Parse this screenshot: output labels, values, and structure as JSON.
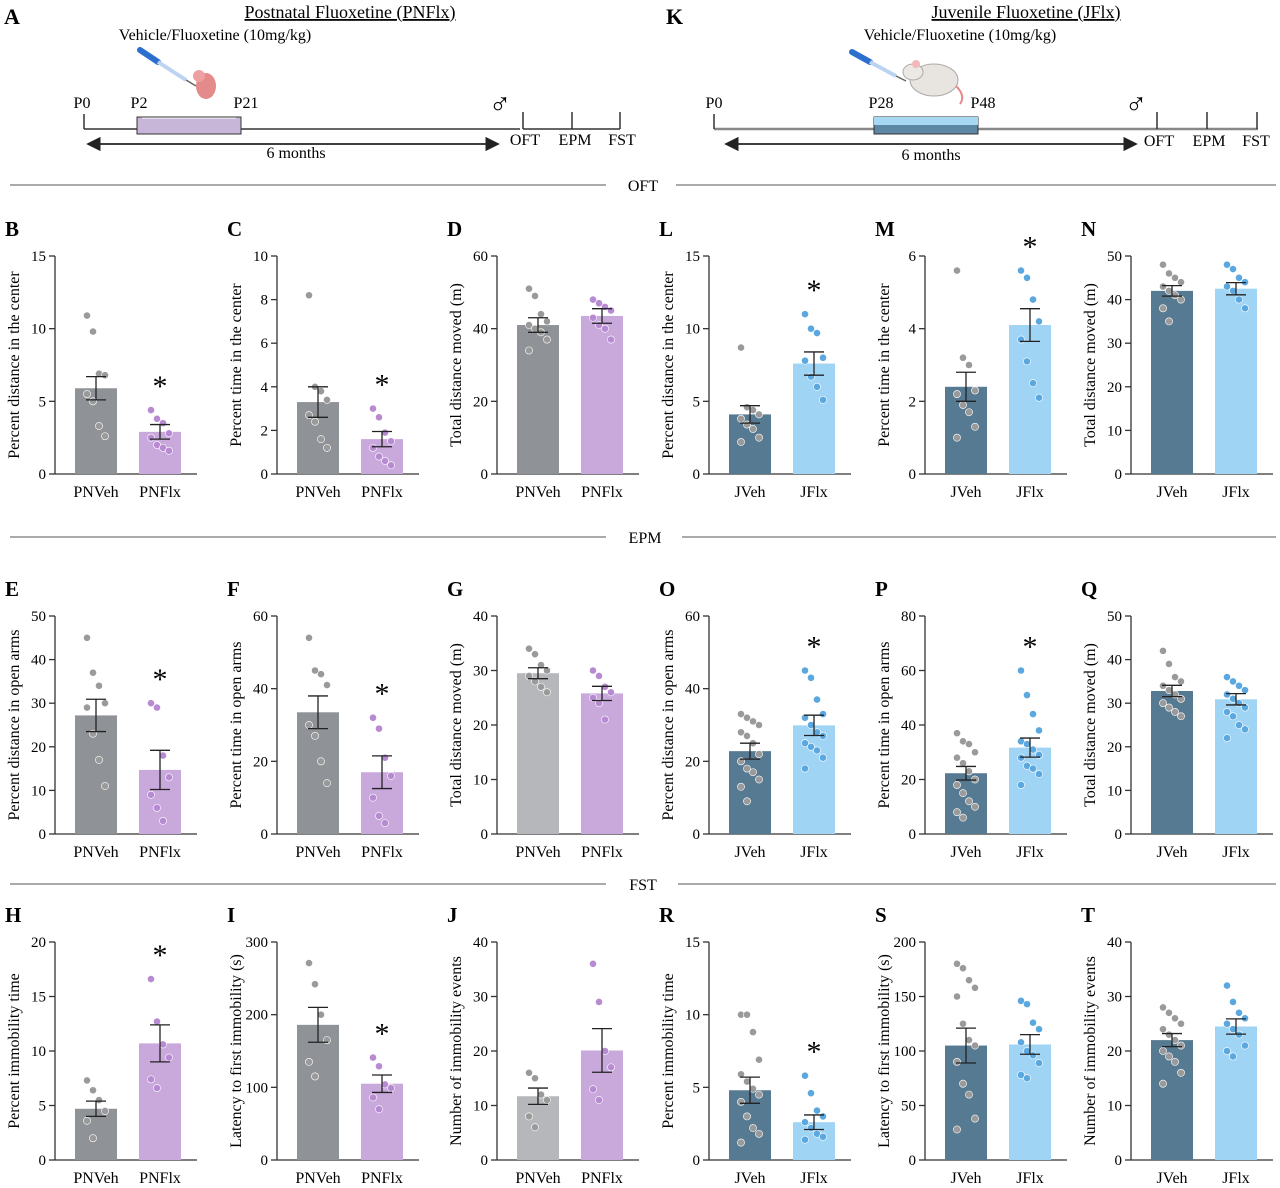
{
  "colors": {
    "pn_veh": "#8f9398",
    "pn_flx": "#c9a8dc",
    "pn_veh_light": "#b5b7ba",
    "j_veh": "#557a92",
    "j_flx": "#9fd4f5",
    "pn_veh_dot": "#9a9a9a",
    "pn_flx_dot": "#b78ad2",
    "j_flx_dot": "#5aa8df",
    "axis": "#333333",
    "syringe": "#2c6fcf",
    "pup": "#e58a8a"
  },
  "protocols": {
    "left": {
      "panel": "A",
      "title": "Postnatal Fluoxetine (PNFlx)",
      "dose": "Vehicle/Fluoxetine (10mg/kg)",
      "markers": [
        "P0",
        "P2",
        "P21"
      ],
      "duration": "6 months",
      "sex": "♂",
      "tests": [
        "OFT",
        "EPM",
        "FST"
      ],
      "treatment_box_color": "#c7b6d8"
    },
    "right": {
      "panel": "K",
      "title": "Juvenile Fluoxetine (JFlx)",
      "dose": "Vehicle/Fluoxetine (10mg/kg)",
      "markers": [
        "P0",
        "P28",
        "P48"
      ],
      "duration": "6 months",
      "sex": "♂",
      "tests": [
        "OFT",
        "EPM",
        "FST"
      ],
      "treatment_box_color": "#5e87a6"
    }
  },
  "section_labels": [
    "OFT",
    "EPM",
    "FST"
  ],
  "chart_data": [
    {
      "id": "B",
      "type": "bar",
      "group": "pn",
      "ylabel": "Percent distance in the center",
      "ylim": [
        0,
        15
      ],
      "ticks": [
        0,
        5,
        10,
        15
      ],
      "categories": [
        "PNVeh",
        "PNFlx"
      ],
      "values": [
        5.9,
        2.9
      ],
      "sem": [
        0.8,
        0.5
      ],
      "points": [
        [
          10.9,
          9.8,
          6.9,
          6.8,
          5.5,
          5.0,
          3.3,
          2.6
        ],
        [
          4.4,
          3.8,
          3.5,
          2.8,
          2.5,
          2.0,
          1.8,
          1.6
        ]
      ],
      "significant": [
        false,
        true
      ]
    },
    {
      "id": "C",
      "type": "bar",
      "group": "pn",
      "ylabel": "Percent time in the center",
      "ylim": [
        0,
        10
      ],
      "ticks": [
        0,
        2,
        4,
        6,
        8,
        10
      ],
      "categories": [
        "PNVeh",
        "PNFlx"
      ],
      "values": [
        3.3,
        1.6
      ],
      "sem": [
        0.7,
        0.35
      ],
      "points": [
        [
          8.2,
          4.0,
          3.8,
          3.4,
          2.7,
          2.4,
          1.6,
          1.2
        ],
        [
          3.0,
          2.6,
          1.9,
          1.5,
          1.2,
          0.8,
          0.6,
          0.4
        ]
      ],
      "significant": [
        false,
        true
      ]
    },
    {
      "id": "D",
      "type": "bar",
      "group": "pn",
      "ylabel": "Total distance moved (m)",
      "ylim": [
        0,
        60
      ],
      "ticks": [
        0,
        20,
        40,
        60
      ],
      "categories": [
        "PNVeh",
        "PNFlx"
      ],
      "values": [
        41,
        43.5
      ],
      "sem": [
        2.0,
        2.0
      ],
      "points": [
        [
          51,
          49,
          44,
          42,
          41,
          40,
          39,
          37,
          34
        ],
        [
          48,
          47,
          46,
          45,
          43,
          41,
          40,
          37
        ]
      ],
      "significant": [
        false,
        false
      ]
    },
    {
      "id": "L",
      "type": "bar",
      "group": "j",
      "ylabel": "Percent distance in the center",
      "ylim": [
        0,
        15
      ],
      "ticks": [
        0,
        5,
        10,
        15
      ],
      "categories": [
        "JVeh",
        "JFlx"
      ],
      "values": [
        4.1,
        7.6
      ],
      "sem": [
        0.6,
        0.8
      ],
      "points": [
        [
          8.7,
          4.6,
          4.4,
          4.1,
          3.8,
          3.4,
          3.1,
          2.5,
          2.2
        ],
        [
          11.0,
          10.0,
          9.7,
          8.0,
          7.8,
          6.7,
          6.0,
          5.1
        ]
      ],
      "significant": [
        false,
        true
      ]
    },
    {
      "id": "M",
      "type": "bar",
      "group": "j",
      "ylabel": "Percent time in the center",
      "ylim": [
        0,
        6
      ],
      "ticks": [
        0,
        2,
        4,
        6
      ],
      "categories": [
        "JVeh",
        "JFlx"
      ],
      "values": [
        2.4,
        4.1
      ],
      "sem": [
        0.4,
        0.45
      ],
      "points": [
        [
          5.6,
          3.2,
          3.0,
          2.3,
          2.2,
          1.9,
          1.7,
          1.3,
          1.0
        ],
        [
          5.6,
          5.4,
          4.8,
          4.2,
          3.7,
          3.1,
          2.5,
          2.1
        ]
      ],
      "significant": [
        false,
        true
      ]
    },
    {
      "id": "N",
      "type": "bar",
      "group": "j",
      "ylabel": "Total distance moved (m)",
      "ylim": [
        0,
        50
      ],
      "ticks": [
        0,
        10,
        20,
        30,
        40,
        50
      ],
      "categories": [
        "JVeh",
        "JFlx"
      ],
      "values": [
        42,
        42.5
      ],
      "sem": [
        1.2,
        1.4
      ],
      "points": [
        [
          48,
          46,
          45,
          44,
          43,
          42,
          41,
          40,
          38,
          35
        ],
        [
          48,
          47,
          45,
          44,
          43,
          42,
          40,
          38
        ]
      ],
      "significant": [
        false,
        false
      ]
    },
    {
      "id": "E",
      "type": "bar",
      "group": "pn",
      "ylabel": "Percent distance in open arms",
      "ylim": [
        0,
        50
      ],
      "ticks": [
        0,
        10,
        20,
        30,
        40,
        50
      ],
      "categories": [
        "PNVeh",
        "PNFlx"
      ],
      "values": [
        27.2,
        14.7
      ],
      "sem": [
        3.7,
        4.5
      ],
      "points": [
        [
          45,
          37,
          34,
          30,
          29,
          23,
          17,
          11
        ],
        [
          30,
          29,
          18,
          13,
          9,
          6,
          3
        ]
      ],
      "significant": [
        false,
        true
      ]
    },
    {
      "id": "F",
      "type": "bar",
      "group": "pn",
      "ylabel": "Percent time in open arms",
      "ylim": [
        0,
        60
      ],
      "ticks": [
        0,
        20,
        40,
        60
      ],
      "categories": [
        "PNVeh",
        "PNFlx"
      ],
      "values": [
        33.5,
        17
      ],
      "sem": [
        4.5,
        4.5
      ],
      "points": [
        [
          54,
          45,
          44,
          41,
          30,
          27,
          20,
          14
        ],
        [
          32,
          29,
          21,
          16,
          10,
          5,
          3
        ]
      ],
      "significant": [
        false,
        true
      ]
    },
    {
      "id": "G",
      "type": "bar",
      "group": "pn_light",
      "ylabel": "Total distance moved (m)",
      "ylim": [
        0,
        40
      ],
      "ticks": [
        0,
        10,
        20,
        30,
        40
      ],
      "categories": [
        "PNVeh",
        "PNFlx"
      ],
      "values": [
        29.5,
        25.8
      ],
      "sem": [
        1.0,
        1.3
      ],
      "points": [
        [
          34,
          33,
          31,
          30,
          29,
          28,
          27,
          26
        ],
        [
          30,
          29,
          27,
          26,
          25,
          24,
          21
        ]
      ],
      "significant": [
        false,
        false
      ]
    },
    {
      "id": "O",
      "type": "bar",
      "group": "j",
      "ylabel": "Percent distance in open arms",
      "ylim": [
        0,
        60
      ],
      "ticks": [
        0,
        20,
        40,
        60
      ],
      "categories": [
        "JVeh",
        "JFlx"
      ],
      "values": [
        22.8,
        29.9
      ],
      "sem": [
        2.2,
        2.8
      ],
      "points": [
        [
          33,
          32,
          31,
          30,
          28,
          27,
          25,
          22,
          20,
          18,
          17,
          15,
          13,
          9
        ],
        [
          45,
          43,
          37,
          33,
          32,
          30,
          28,
          27,
          25,
          24,
          23,
          21,
          18
        ]
      ],
      "significant": [
        false,
        true
      ]
    },
    {
      "id": "P",
      "type": "bar",
      "group": "j",
      "ylabel": "Percent time in open arms",
      "ylim": [
        0,
        80
      ],
      "ticks": [
        0,
        20,
        40,
        60,
        80
      ],
      "categories": [
        "JVeh",
        "JFlx"
      ],
      "values": [
        22.3,
        31.7
      ],
      "sem": [
        2.5,
        3.5
      ],
      "points": [
        [
          37,
          34,
          33,
          30,
          28,
          26,
          23,
          20,
          18,
          15,
          12,
          10,
          8,
          6
        ],
        [
          60,
          51,
          44,
          38,
          34,
          33,
          31,
          29,
          28,
          25,
          24,
          22,
          18
        ]
      ],
      "significant": [
        false,
        true
      ]
    },
    {
      "id": "Q",
      "type": "bar",
      "group": "j",
      "ylabel": "Total distance moved (m)",
      "ylim": [
        0,
        50
      ],
      "ticks": [
        0,
        10,
        20,
        30,
        40,
        50
      ],
      "categories": [
        "JVeh",
        "JFlx"
      ],
      "values": [
        32.8,
        30.9
      ],
      "sem": [
        1.3,
        1.3
      ],
      "points": [
        [
          42,
          39,
          36,
          35,
          34,
          33,
          32,
          31,
          30,
          29,
          28,
          27
        ],
        [
          36,
          35,
          34,
          33,
          32,
          31,
          30,
          29,
          28,
          27,
          25,
          24,
          22
        ]
      ],
      "significant": [
        false,
        false
      ]
    },
    {
      "id": "H",
      "type": "bar",
      "group": "pn",
      "ylabel": "Percent immobility time",
      "ylim": [
        0,
        20
      ],
      "ticks": [
        0,
        5,
        10,
        15,
        20
      ],
      "categories": [
        "PNVeh",
        "PNFlx"
      ],
      "values": [
        4.7,
        10.7
      ],
      "sem": [
        0.7,
        1.7
      ],
      "points": [
        [
          7.3,
          6.4,
          5.5,
          4.5,
          3.6,
          2.0
        ],
        [
          16.6,
          12.7,
          10.6,
          9.4,
          7.4,
          6.6
        ]
      ],
      "significant": [
        false,
        true
      ]
    },
    {
      "id": "I",
      "type": "bar",
      "group": "pn",
      "ylabel": "Latency to first immobility (s)",
      "ylim": [
        0,
        300
      ],
      "ticks": [
        0,
        100,
        200,
        300
      ],
      "categories": [
        "PNVeh",
        "PNFlx"
      ],
      "values": [
        186,
        105
      ],
      "sem": [
        24,
        12
      ],
      "points": [
        [
          271,
          242,
          200,
          165,
          135,
          115
        ],
        [
          141,
          129,
          104,
          99,
          86,
          70
        ]
      ],
      "significant": [
        false,
        true
      ]
    },
    {
      "id": "J",
      "type": "bar",
      "group": "pn_light",
      "ylabel": "Number of immobility events",
      "ylim": [
        0,
        40
      ],
      "ticks": [
        0,
        10,
        20,
        30,
        40
      ],
      "categories": [
        "PNVeh",
        "PNFlx"
      ],
      "values": [
        11.7,
        20.1
      ],
      "sem": [
        1.5,
        4.0
      ],
      "points": [
        [
          16,
          15,
          12,
          11,
          8,
          6
        ],
        [
          36,
          29,
          20,
          17,
          13,
          11
        ]
      ],
      "significant": [
        false,
        false
      ]
    },
    {
      "id": "R",
      "type": "bar",
      "group": "j",
      "ylabel": "Percent immobility time",
      "ylim": [
        0,
        15
      ],
      "ticks": [
        0,
        5,
        10,
        15
      ],
      "categories": [
        "JVeh",
        "JFlx"
      ],
      "values": [
        4.8,
        2.6
      ],
      "sem": [
        0.9,
        0.5
      ],
      "points": [
        [
          10,
          10,
          8.8,
          6.9,
          5.9,
          5.4,
          4.9,
          4.5,
          4.0,
          3.0,
          2.2,
          1.8,
          1.2
        ],
        [
          5.8,
          4.6,
          3.4,
          3.0,
          2.6,
          2.2,
          1.8,
          1.6,
          1.4
        ]
      ],
      "significant": [
        false,
        true
      ]
    },
    {
      "id": "S",
      "type": "bar",
      "group": "j",
      "ylabel": "Latency to first immobility (s)",
      "ylim": [
        0,
        200
      ],
      "ticks": [
        0,
        50,
        100,
        150,
        200
      ],
      "categories": [
        "JVeh",
        "JFlx"
      ],
      "values": [
        105,
        106
      ],
      "sem": [
        16,
        9
      ],
      "points": [
        [
          180,
          176,
          165,
          158,
          150,
          125,
          110,
          105,
          90,
          70,
          60,
          38,
          28
        ],
        [
          146,
          143,
          126,
          120,
          108,
          100,
          96,
          89,
          78,
          75
        ]
      ],
      "significant": [
        false,
        false
      ]
    },
    {
      "id": "T",
      "type": "bar",
      "group": "j",
      "ylabel": "Number of immobility events",
      "ylim": [
        0,
        40
      ],
      "ticks": [
        0,
        10,
        20,
        30,
        40
      ],
      "categories": [
        "JVeh",
        "JFlx"
      ],
      "values": [
        22,
        24.5
      ],
      "sem": [
        1.2,
        1.4
      ],
      "points": [
        [
          28,
          27,
          26,
          25,
          24,
          23,
          22,
          21,
          20,
          19,
          18,
          16,
          14
        ],
        [
          32,
          29,
          27,
          26,
          25,
          24,
          23,
          21,
          20,
          19
        ]
      ],
      "significant": [
        false,
        false
      ]
    }
  ]
}
